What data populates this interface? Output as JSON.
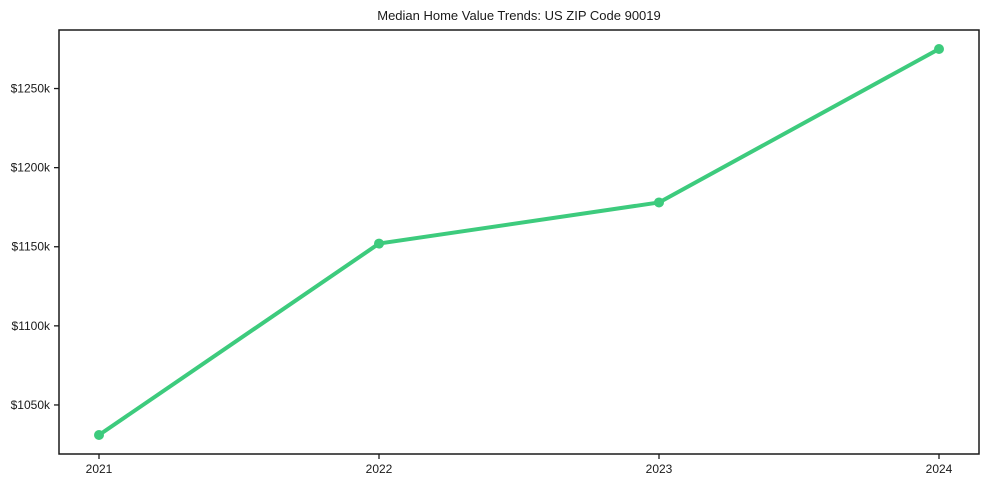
{
  "chart_data": {
    "type": "line",
    "title": "Median Home Value Trends: US ZIP Code 90019",
    "categories": [
      "2021",
      "2022",
      "2023",
      "2024"
    ],
    "values": [
      1031,
      1152,
      1178,
      1275
    ],
    "values_unit": "USD thousands",
    "y_ticks": [
      1050,
      1100,
      1150,
      1200,
      1250
    ],
    "y_tick_labels": [
      "$1050k",
      "$1100k",
      "$1150k",
      "$1200k",
      "$1250k"
    ],
    "x_tick_labels": [
      "2021",
      "2022",
      "2023",
      "2024"
    ],
    "ylim": [
      1019,
      1287
    ],
    "xlabel": "",
    "ylabel": "",
    "grid": false,
    "legend_position": "none",
    "line_color": "#3dcb7d",
    "marker": "circle",
    "axis_color": "#1a1a1a",
    "background_color": "#ffffff"
  }
}
